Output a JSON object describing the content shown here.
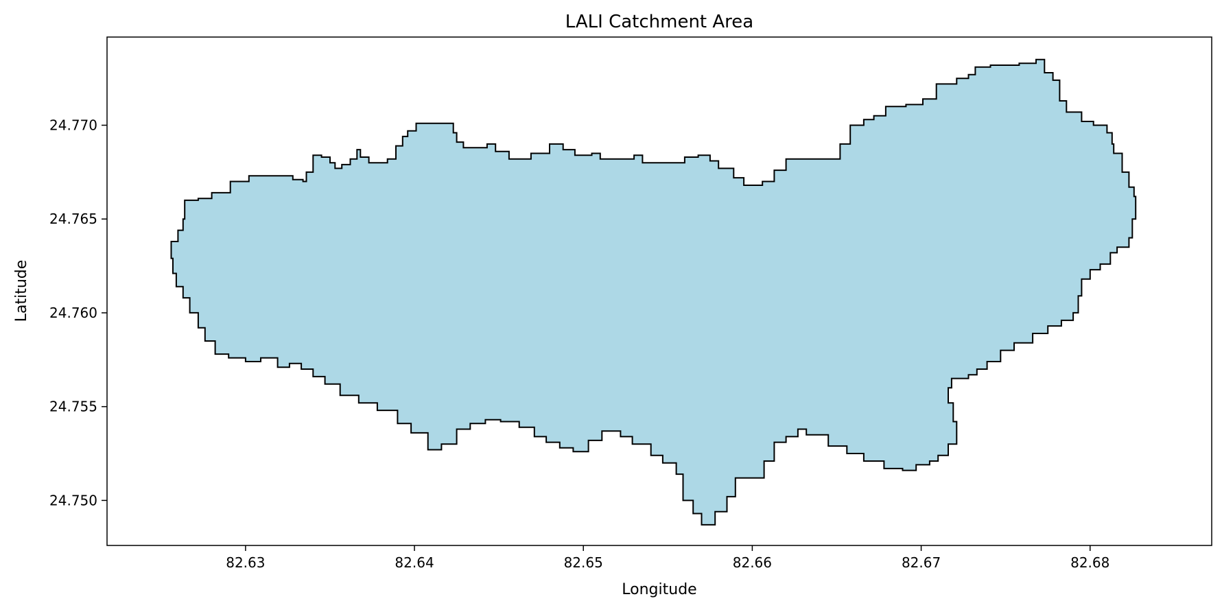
{
  "chart_data": {
    "type": "map",
    "title": "LALI Catchment Area",
    "xlabel": "Longitude",
    "ylabel": "Latitude",
    "xlim": [
      82.6218,
      82.6872
    ],
    "ylim": [
      24.7476,
      24.7747
    ],
    "x_ticks": [
      82.63,
      82.64,
      82.65,
      82.66,
      82.67,
      82.68
    ],
    "x_tick_labels": [
      "82.63",
      "82.64",
      "82.65",
      "82.66",
      "82.67",
      "82.68"
    ],
    "y_ticks": [
      24.75,
      24.755,
      24.76,
      24.765,
      24.77
    ],
    "y_tick_labels": [
      "24.750",
      "24.755",
      "24.760",
      "24.765",
      "24.770"
    ],
    "grid": false,
    "fill_color": "#add8e6",
    "edge_color": "#000000",
    "polygon": [
      [
        82.6316,
        24.7673
      ],
      [
        82.6328,
        24.7671
      ],
      [
        82.6334,
        24.767
      ],
      [
        82.6336,
        24.7675
      ],
      [
        82.634,
        24.7684
      ],
      [
        82.6345,
        24.7683
      ],
      [
        82.635,
        24.768
      ],
      [
        82.6353,
        24.7677
      ],
      [
        82.6357,
        24.7679
      ],
      [
        82.6362,
        24.7682
      ],
      [
        82.6366,
        24.7687
      ],
      [
        82.6368,
        24.7683
      ],
      [
        82.6373,
        24.768
      ],
      [
        82.6384,
        24.7682
      ],
      [
        82.6389,
        24.7689
      ],
      [
        82.6393,
        24.7694
      ],
      [
        82.6396,
        24.7697
      ],
      [
        82.6401,
        24.7701
      ],
      [
        82.642,
        24.7701
      ],
      [
        82.6423,
        24.7696
      ],
      [
        82.6425,
        24.7691
      ],
      [
        82.6429,
        24.7688
      ],
      [
        82.6438,
        24.7688
      ],
      [
        82.6443,
        24.769
      ],
      [
        82.6448,
        24.7686
      ],
      [
        82.6456,
        24.7682
      ],
      [
        82.6469,
        24.7685
      ],
      [
        82.648,
        24.769
      ],
      [
        82.6488,
        24.7687
      ],
      [
        82.6495,
        24.7684
      ],
      [
        82.6505,
        24.7685
      ],
      [
        82.651,
        24.7682
      ],
      [
        82.6525,
        24.7682
      ],
      [
        82.653,
        24.7684
      ],
      [
        82.6535,
        24.768
      ],
      [
        82.6557,
        24.768
      ],
      [
        82.656,
        24.7683
      ],
      [
        82.6568,
        24.7684
      ],
      [
        82.6575,
        24.7681
      ],
      [
        82.658,
        24.7677
      ],
      [
        82.6589,
        24.7672
      ],
      [
        82.6595,
        24.7668
      ],
      [
        82.6606,
        24.767
      ],
      [
        82.6613,
        24.7676
      ],
      [
        82.662,
        24.7682
      ],
      [
        82.6638,
        24.7682
      ],
      [
        82.6648,
        24.7682
      ],
      [
        82.6652,
        24.769
      ],
      [
        82.6658,
        24.77
      ],
      [
        82.6666,
        24.7703
      ],
      [
        82.6672,
        24.7705
      ],
      [
        82.6679,
        24.771
      ],
      [
        82.6691,
        24.7711
      ],
      [
        82.6701,
        24.7714
      ],
      [
        82.6709,
        24.7722
      ],
      [
        82.6721,
        24.7725
      ],
      [
        82.6728,
        24.7727
      ],
      [
        82.6732,
        24.7731
      ],
      [
        82.6741,
        24.7732
      ],
      [
        82.6758,
        24.7733
      ],
      [
        82.6768,
        24.7735
      ],
      [
        82.6773,
        24.7728
      ],
      [
        82.6778,
        24.7724
      ],
      [
        82.6782,
        24.7713
      ],
      [
        82.6786,
        24.7707
      ],
      [
        82.6795,
        24.7702
      ],
      [
        82.6802,
        24.77
      ],
      [
        82.681,
        24.7696
      ],
      [
        82.6813,
        24.769
      ],
      [
        82.6814,
        24.7685
      ],
      [
        82.6819,
        24.7675
      ],
      [
        82.6823,
        24.7667
      ],
      [
        82.6826,
        24.7662
      ],
      [
        82.6827,
        24.765
      ],
      [
        82.6825,
        24.764
      ],
      [
        82.6823,
        24.7635
      ],
      [
        82.6816,
        24.7632
      ],
      [
        82.6812,
        24.7626
      ],
      [
        82.6806,
        24.7623
      ],
      [
        82.68,
        24.7618
      ],
      [
        82.6795,
        24.7609
      ],
      [
        82.6793,
        24.76
      ],
      [
        82.679,
        24.7596
      ],
      [
        82.6783,
        24.7593
      ],
      [
        82.6775,
        24.7589
      ],
      [
        82.6766,
        24.7584
      ],
      [
        82.6755,
        24.758
      ],
      [
        82.6747,
        24.7574
      ],
      [
        82.6739,
        24.757
      ],
      [
        82.6733,
        24.7567
      ],
      [
        82.6728,
        24.7565
      ],
      [
        82.6721,
        24.7565
      ],
      [
        82.6718,
        24.756
      ],
      [
        82.6716,
        24.7552
      ],
      [
        82.6719,
        24.7542
      ],
      [
        82.6721,
        24.753
      ],
      [
        82.6716,
        24.7524
      ],
      [
        82.671,
        24.7521
      ],
      [
        82.6705,
        24.7519
      ],
      [
        82.6697,
        24.7516
      ],
      [
        82.6689,
        24.7517
      ],
      [
        82.6678,
        24.7521
      ],
      [
        82.6666,
        24.7525
      ],
      [
        82.6656,
        24.7529
      ],
      [
        82.6645,
        24.7535
      ],
      [
        82.6632,
        24.7538
      ],
      [
        82.6627,
        24.7534
      ],
      [
        82.662,
        24.7531
      ],
      [
        82.6613,
        24.7521
      ],
      [
        82.6607,
        24.7512
      ],
      [
        82.6597,
        24.7512
      ],
      [
        82.659,
        24.7502
      ],
      [
        82.6585,
        24.7494
      ],
      [
        82.6578,
        24.7487
      ],
      [
        82.657,
        24.7493
      ],
      [
        82.6565,
        24.75
      ],
      [
        82.6559,
        24.7514
      ],
      [
        82.6555,
        24.752
      ],
      [
        82.6547,
        24.7524
      ],
      [
        82.654,
        24.753
      ],
      [
        82.6529,
        24.7534
      ],
      [
        82.6522,
        24.7537
      ],
      [
        82.6511,
        24.7532
      ],
      [
        82.6503,
        24.7526
      ],
      [
        82.6494,
        24.7528
      ],
      [
        82.6486,
        24.7531
      ],
      [
        82.6478,
        24.7534
      ],
      [
        82.6471,
        24.7539
      ],
      [
        82.6462,
        24.7542
      ],
      [
        82.6451,
        24.7543
      ],
      [
        82.6442,
        24.7541
      ],
      [
        82.6433,
        24.7538
      ],
      [
        82.6425,
        24.753
      ],
      [
        82.6416,
        24.7527
      ],
      [
        82.6408,
        24.7536
      ],
      [
        82.6398,
        24.7541
      ],
      [
        82.639,
        24.7548
      ],
      [
        82.6378,
        24.7552
      ],
      [
        82.6367,
        24.7556
      ],
      [
        82.6356,
        24.7562
      ],
      [
        82.6347,
        24.7566
      ],
      [
        82.634,
        24.757
      ],
      [
        82.6333,
        24.7573
      ],
      [
        82.6326,
        24.7571
      ],
      [
        82.6319,
        24.7576
      ],
      [
        82.6309,
        24.7574
      ],
      [
        82.63,
        24.7576
      ],
      [
        82.629,
        24.7578
      ],
      [
        82.6282,
        24.7585
      ],
      [
        82.6276,
        24.7592
      ],
      [
        82.6272,
        24.76
      ],
      [
        82.6267,
        24.7608
      ],
      [
        82.6263,
        24.7614
      ],
      [
        82.6259,
        24.7621
      ],
      [
        82.6257,
        24.7629
      ],
      [
        82.6256,
        24.7638
      ],
      [
        82.626,
        24.7644
      ],
      [
        82.6263,
        24.765
      ],
      [
        82.6264,
        24.766
      ],
      [
        82.6272,
        24.7661
      ],
      [
        82.628,
        24.7664
      ],
      [
        82.6291,
        24.767
      ],
      [
        82.6302,
        24.7673
      ]
    ]
  }
}
